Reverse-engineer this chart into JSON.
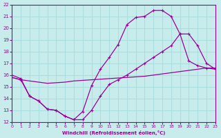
{
  "xlabel": "Windchill (Refroidissement éolien,°C)",
  "bg_color": "#c8ecec",
  "line_color": "#990099",
  "grid_color": "#aadddd",
  "xlim": [
    0,
    23
  ],
  "ylim": [
    12,
    22
  ],
  "xticks": [
    0,
    1,
    2,
    3,
    4,
    5,
    6,
    7,
    8,
    9,
    10,
    11,
    12,
    13,
    14,
    15,
    16,
    17,
    18,
    19,
    20,
    21,
    22,
    23
  ],
  "yticks": [
    12,
    13,
    14,
    15,
    16,
    17,
    18,
    19,
    20,
    21,
    22
  ],
  "line1_x": [
    0,
    1,
    2,
    3,
    4,
    5,
    6,
    7,
    8,
    9,
    10,
    11,
    12,
    13,
    14,
    15,
    16,
    17,
    18,
    19,
    20,
    21,
    22,
    23
  ],
  "line1_y": [
    16.0,
    15.7,
    14.2,
    13.8,
    13.1,
    13.0,
    12.5,
    12.2,
    12.9,
    15.1,
    16.5,
    17.5,
    18.6,
    20.3,
    20.9,
    21.0,
    21.5,
    21.5,
    21.0,
    19.5,
    17.2,
    16.8,
    16.6,
    16.5
  ],
  "line2_x": [
    0,
    1,
    2,
    3,
    4,
    5,
    6,
    7,
    8,
    9,
    10,
    11,
    12,
    13,
    14,
    15,
    16,
    17,
    18,
    19,
    20,
    21,
    22,
    23
  ],
  "line2_y": [
    15.8,
    15.6,
    15.5,
    15.4,
    15.3,
    15.35,
    15.4,
    15.5,
    15.55,
    15.6,
    15.65,
    15.7,
    15.75,
    15.8,
    15.85,
    15.9,
    16.0,
    16.1,
    16.2,
    16.3,
    16.4,
    16.5,
    16.6,
    16.6
  ],
  "line3_x": [
    0,
    1,
    2,
    3,
    4,
    5,
    6,
    7,
    8,
    9,
    10,
    11,
    12,
    13,
    14,
    15,
    16,
    17,
    18,
    19,
    20,
    21,
    22,
    23
  ],
  "line3_y": [
    15.8,
    15.6,
    14.2,
    13.8,
    13.1,
    13.0,
    12.5,
    12.2,
    12.2,
    13.0,
    14.2,
    15.2,
    15.6,
    16.0,
    16.5,
    17.0,
    17.5,
    18.0,
    18.5,
    19.5,
    19.5,
    18.5,
    17.0,
    16.5
  ]
}
